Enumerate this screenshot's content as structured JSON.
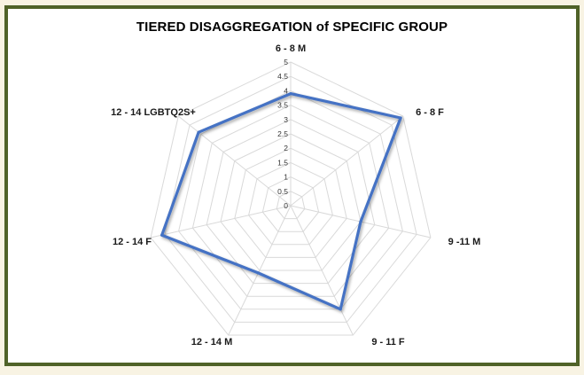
{
  "chart_data": {
    "type": "radar",
    "title": "TIERED DISAGGREGATION of SPECIFIC GROUP",
    "categories": [
      "6 - 8 M",
      "6 - 8  F",
      "9 -11 M",
      "9 - 11 F",
      "12 - 14 M",
      "12 - 14 F",
      "12 - 14 LGBTQ2S+"
    ],
    "ticks": [
      "0",
      "0.5",
      "1",
      "1.5",
      "2",
      "2.5",
      "3",
      "3.5",
      "4",
      "4.5",
      "5"
    ],
    "rlim": [
      0,
      5
    ],
    "grid": true,
    "series": [
      {
        "values": [
          3.9,
          4.9,
          2.5,
          4.0,
          2.6,
          4.6,
          4.1
        ]
      }
    ],
    "colors": {
      "series": "#4472c4",
      "grid": "#d9d9d9",
      "frame": "#4f6228"
    }
  }
}
